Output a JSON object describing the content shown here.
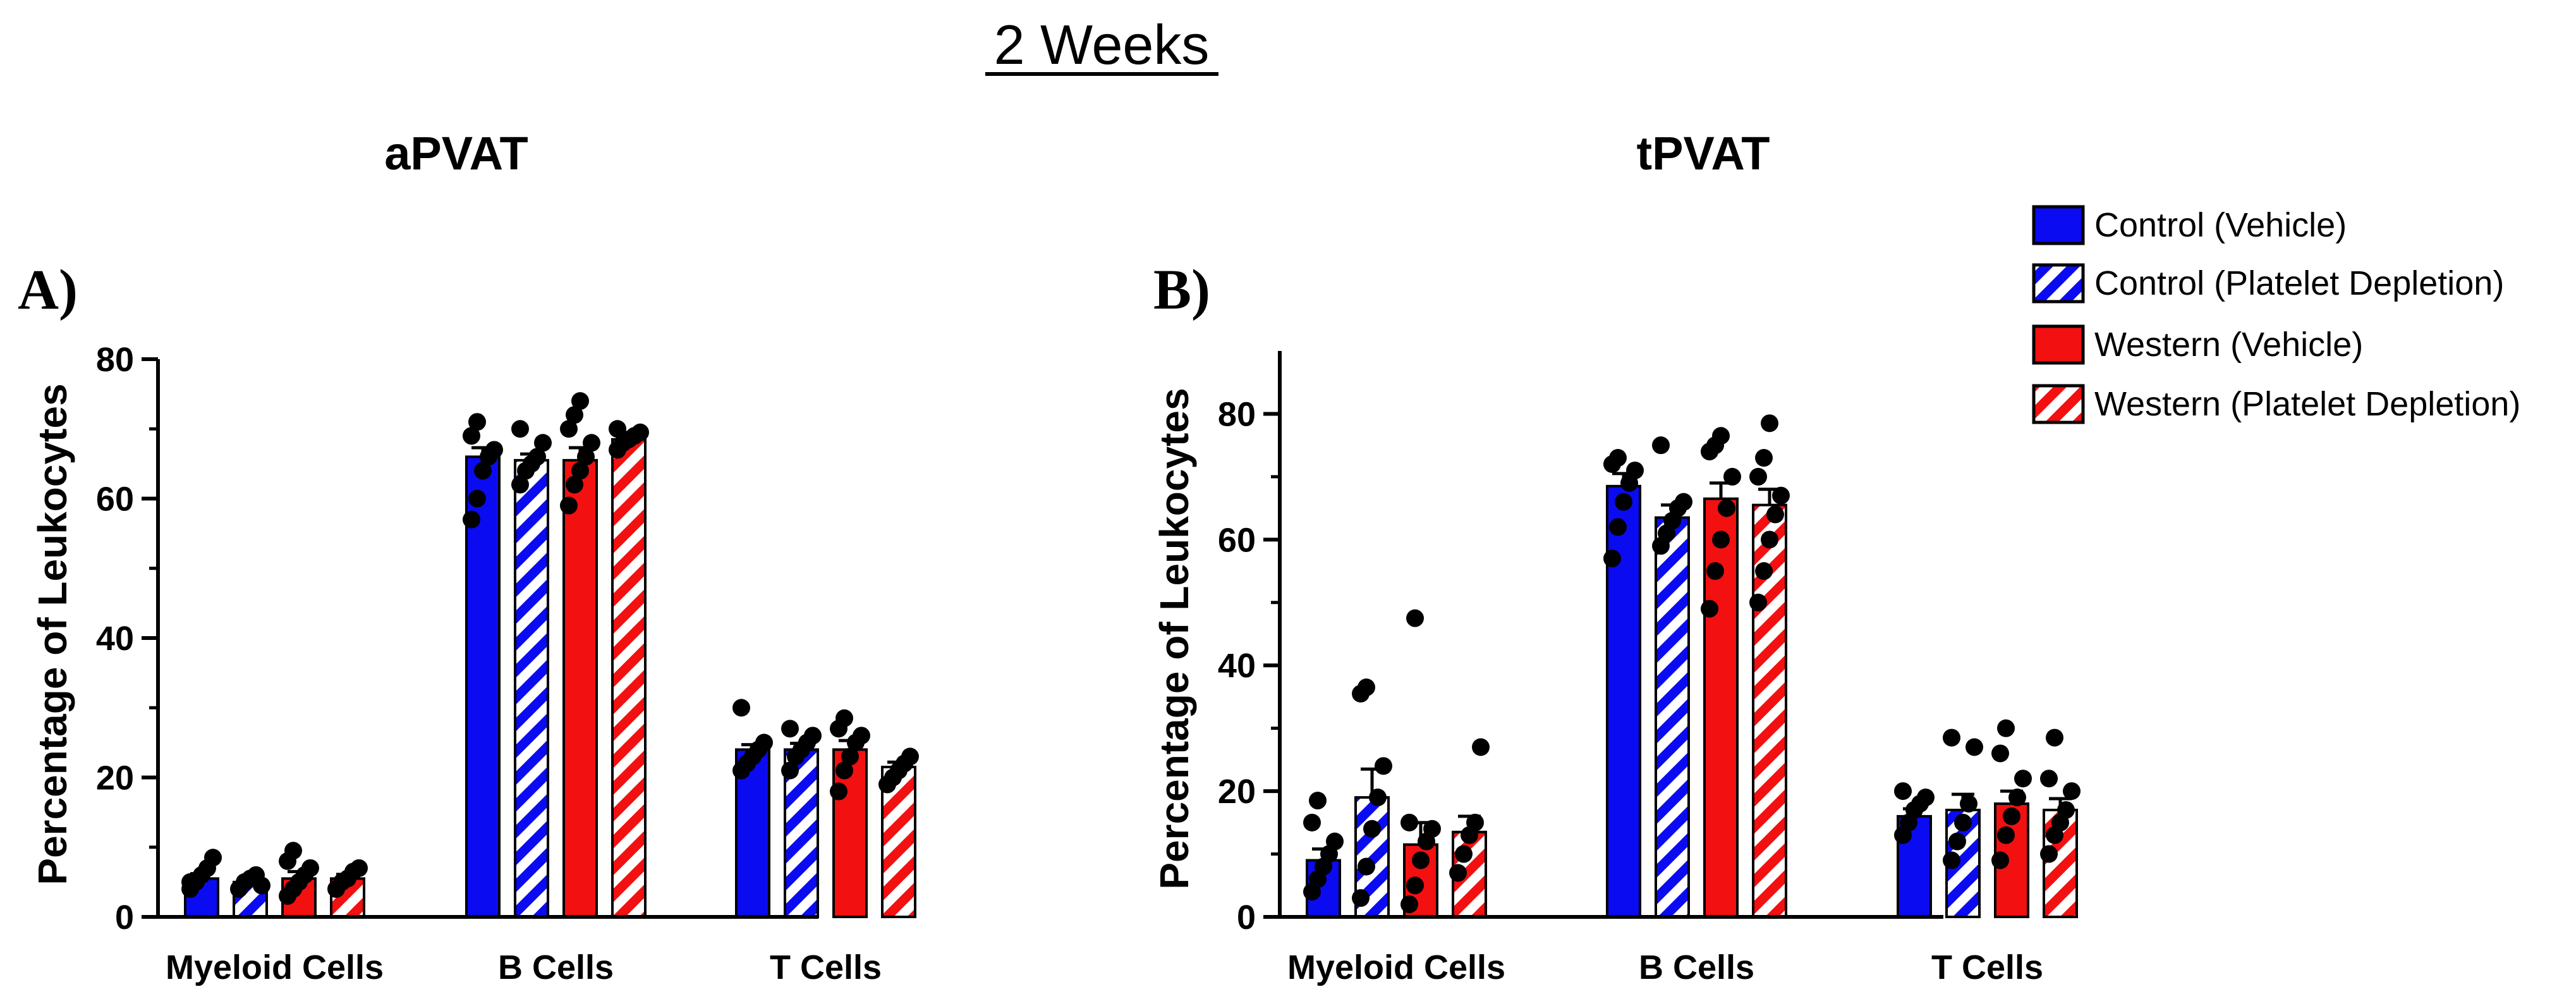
{
  "figure": {
    "super_title": "2 Weeks"
  },
  "colors": {
    "control": "#0b0bf2",
    "western": "#f21010",
    "points": "#000000"
  },
  "legend": [
    {
      "label": "Control (Vehicle)",
      "color": "#0b0bf2",
      "pattern": "solid"
    },
    {
      "label": "Control (Platelet Depletion)",
      "color": "#0b0bf2",
      "pattern": "hatched"
    },
    {
      "label": "Western (Vehicle)",
      "color": "#f21010",
      "pattern": "solid"
    },
    {
      "label": "Western (Platelet Depletion)",
      "color": "#f21010",
      "pattern": "hatched"
    }
  ],
  "chart_data": [
    {
      "type": "bar",
      "panel_label": "A)",
      "title": "aPVAT",
      "ylabel": "Percentage of Leukocytes",
      "ylim": [
        0,
        80
      ],
      "yticks": [
        "0",
        "20",
        "40",
        "60",
        "80"
      ],
      "categories": [
        "Myeloid Cells",
        "B Cells",
        "T Cells"
      ],
      "series": [
        {
          "name": "Control (Vehicle)",
          "values": [
            5.5,
            66,
            24
          ],
          "sem": [
            0.7,
            1.3,
            0.7
          ],
          "points": [
            [
              4,
              5,
              6,
              7,
              8.5,
              5
            ],
            [
              57,
              60,
              64,
              66,
              67,
              69,
              71
            ],
            [
              21,
              22,
              23,
              24,
              25,
              30
            ]
          ]
        },
        {
          "name": "Control (Platelet Depletion)",
          "values": [
            5,
            65.5,
            24
          ],
          "sem": [
            0.4,
            0.9,
            0.9
          ],
          "points": [
            [
              4,
              5,
              5.5,
              6,
              4.5
            ],
            [
              62,
              64,
              65,
              66,
              68,
              70
            ],
            [
              21,
              23,
              24,
              25,
              26,
              27
            ]
          ]
        },
        {
          "name": "Western (Vehicle)",
          "values": [
            5.5,
            65.5,
            24
          ],
          "sem": [
            1.0,
            1.8,
            1.3
          ],
          "points": [
            [
              3,
              4,
              5,
              6,
              7,
              8,
              9.5
            ],
            [
              59,
              62,
              64,
              66,
              68,
              70,
              72,
              74
            ],
            [
              18,
              21,
              23,
              25,
              26,
              27,
              28.5
            ]
          ]
        },
        {
          "name": "Western (Platelet Depletion)",
          "values": [
            5.5,
            68.5,
            21.5
          ],
          "sem": [
            0.6,
            0.5,
            0.7
          ],
          "points": [
            [
              4,
              5,
              5.5,
              6.5,
              7
            ],
            [
              67,
              68,
              68.5,
              69,
              69.5,
              70
            ],
            [
              19,
              20,
              21,
              22,
              23
            ]
          ]
        }
      ]
    },
    {
      "type": "bar",
      "panel_label": "B)",
      "title": "tPVAT",
      "ylabel": "Percentage of Leukocytes",
      "ylim": [
        0,
        90
      ],
      "yticks": [
        "0",
        "20",
        "40",
        "60",
        "80"
      ],
      "categories": [
        "Myeloid Cells",
        "B Cells",
        "T Cells"
      ],
      "series": [
        {
          "name": "Control (Vehicle)",
          "values": [
            9,
            68.5,
            16
          ],
          "sem": [
            1.8,
            2.0,
            1.2
          ],
          "points": [
            [
              4,
              6,
              8,
              10,
              12,
              15,
              18.5
            ],
            [
              57,
              62,
              66,
              69,
              71,
              72,
              73
            ],
            [
              13,
              15,
              17,
              18,
              19,
              20
            ]
          ]
        },
        {
          "name": "Control (Platelet Depletion)",
          "values": [
            19,
            63.5,
            17
          ],
          "sem": [
            4.5,
            2.0,
            2.5
          ],
          "points": [
            [
              3,
              8,
              14,
              19,
              24,
              35.5,
              36.5
            ],
            [
              59,
              61,
              63,
              65,
              66,
              75
            ],
            [
              9,
              12,
              15,
              18,
              27,
              28.5
            ]
          ]
        },
        {
          "name": "Western (Vehicle)",
          "values": [
            11.5,
            66.5,
            18
          ],
          "sem": [
            3.5,
            2.5,
            2.0
          ],
          "points": [
            [
              2,
              5,
              9,
              12,
              14,
              15,
              47.5
            ],
            [
              49,
              55,
              60,
              65,
              70,
              74,
              75,
              76.5
            ],
            [
              9,
              13,
              16,
              19,
              22,
              26,
              30
            ]
          ]
        },
        {
          "name": "Western (Platelet Depletion)",
          "values": [
            13.5,
            65.5,
            17
          ],
          "sem": [
            2.5,
            2.5,
            1.8
          ],
          "points": [
            [
              7,
              10,
              13,
              15,
              27
            ],
            [
              50,
              55,
              60,
              64,
              67,
              70,
              73,
              78.5
            ],
            [
              10,
              13,
              15,
              17,
              20,
              22,
              28.5
            ]
          ]
        }
      ]
    }
  ]
}
